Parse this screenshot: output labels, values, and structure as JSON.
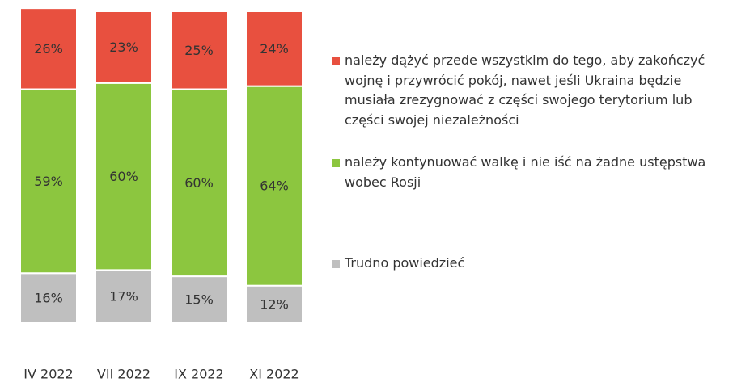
{
  "chart_data": {
    "type": "stacked_bar",
    "categories": [
      "IV 2022",
      "VII 2022",
      "IX 2022",
      "XI 2022"
    ],
    "series": [
      {
        "name": "należy dążyć przede wszystkim do tego, aby zakończyć wojnę i przywrócić pokój, nawet jeśli Ukraina będzie musiała zrezygnować z części swojego terytorium lub części swojej niezależności",
        "color": "#e8503f",
        "values": [
          26,
          23,
          25,
          24
        ],
        "value_labels": [
          "26%",
          "23%",
          "25%",
          "24%"
        ]
      },
      {
        "name": "należy kontynuować walkę i nie iść na żadne ustępstwa wobec Rosji",
        "color": "#8cc63f",
        "values": [
          59,
          60,
          60,
          64
        ],
        "value_labels": [
          "59%",
          "60%",
          "60%",
          "64%"
        ]
      },
      {
        "name": "Trudno powiedzieć",
        "color": "#bfbfbf",
        "values": [
          16,
          17,
          15,
          12
        ],
        "value_labels": [
          "16%",
          "17%",
          "15%",
          "12%"
        ]
      }
    ],
    "ylim": [
      0,
      100
    ]
  }
}
